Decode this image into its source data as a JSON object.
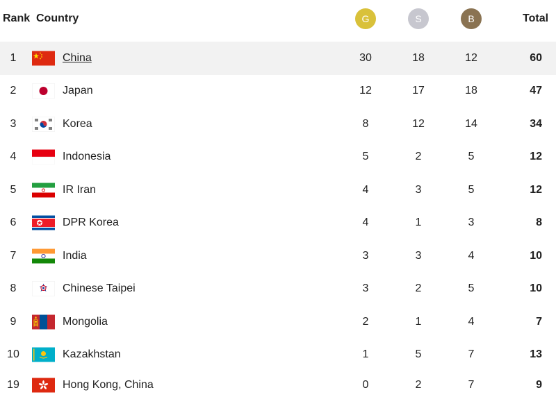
{
  "header": {
    "rank": "Rank",
    "country": "Country",
    "gold": "G",
    "silver": "S",
    "bronze": "B",
    "total": "Total"
  },
  "colors": {
    "gold": "#d9c13a",
    "silver": "#c7c7cf",
    "bronze": "#8a7352",
    "highlight_row": "#f2f2f2"
  },
  "rows": [
    {
      "rank": "1",
      "country": "China",
      "gold": "30",
      "silver": "18",
      "bronze": "12",
      "total": "60",
      "flag": "china-flag-icon"
    },
    {
      "rank": "2",
      "country": "Japan",
      "gold": "12",
      "silver": "17",
      "bronze": "18",
      "total": "47",
      "flag": "japan-flag-icon"
    },
    {
      "rank": "3",
      "country": "Korea",
      "gold": "8",
      "silver": "12",
      "bronze": "14",
      "total": "34",
      "flag": "korea-flag-icon"
    },
    {
      "rank": "4",
      "country": "Indonesia",
      "gold": "5",
      "silver": "2",
      "bronze": "5",
      "total": "12",
      "flag": "indonesia-flag-icon"
    },
    {
      "rank": "5",
      "country": "IR Iran",
      "gold": "4",
      "silver": "3",
      "bronze": "5",
      "total": "12",
      "flag": "iran-flag-icon"
    },
    {
      "rank": "6",
      "country": "DPR Korea",
      "gold": "4",
      "silver": "1",
      "bronze": "3",
      "total": "8",
      "flag": "dpr-korea-flag-icon"
    },
    {
      "rank": "7",
      "country": "India",
      "gold": "3",
      "silver": "3",
      "bronze": "4",
      "total": "10",
      "flag": "india-flag-icon"
    },
    {
      "rank": "8",
      "country": "Chinese Taipei",
      "gold": "3",
      "silver": "2",
      "bronze": "5",
      "total": "10",
      "flag": "chinese-taipei-flag-icon"
    },
    {
      "rank": "9",
      "country": "Mongolia",
      "gold": "2",
      "silver": "1",
      "bronze": "4",
      "total": "7",
      "flag": "mongolia-flag-icon"
    },
    {
      "rank": "10",
      "country": "Kazakhstan",
      "gold": "1",
      "silver": "5",
      "bronze": "7",
      "total": "13",
      "flag": "kazakhstan-flag-icon"
    },
    {
      "rank": "19",
      "country": "Hong Kong, China",
      "gold": "0",
      "silver": "2",
      "bronze": "7",
      "total": "9",
      "flag": "hong-kong-flag-icon"
    }
  ]
}
